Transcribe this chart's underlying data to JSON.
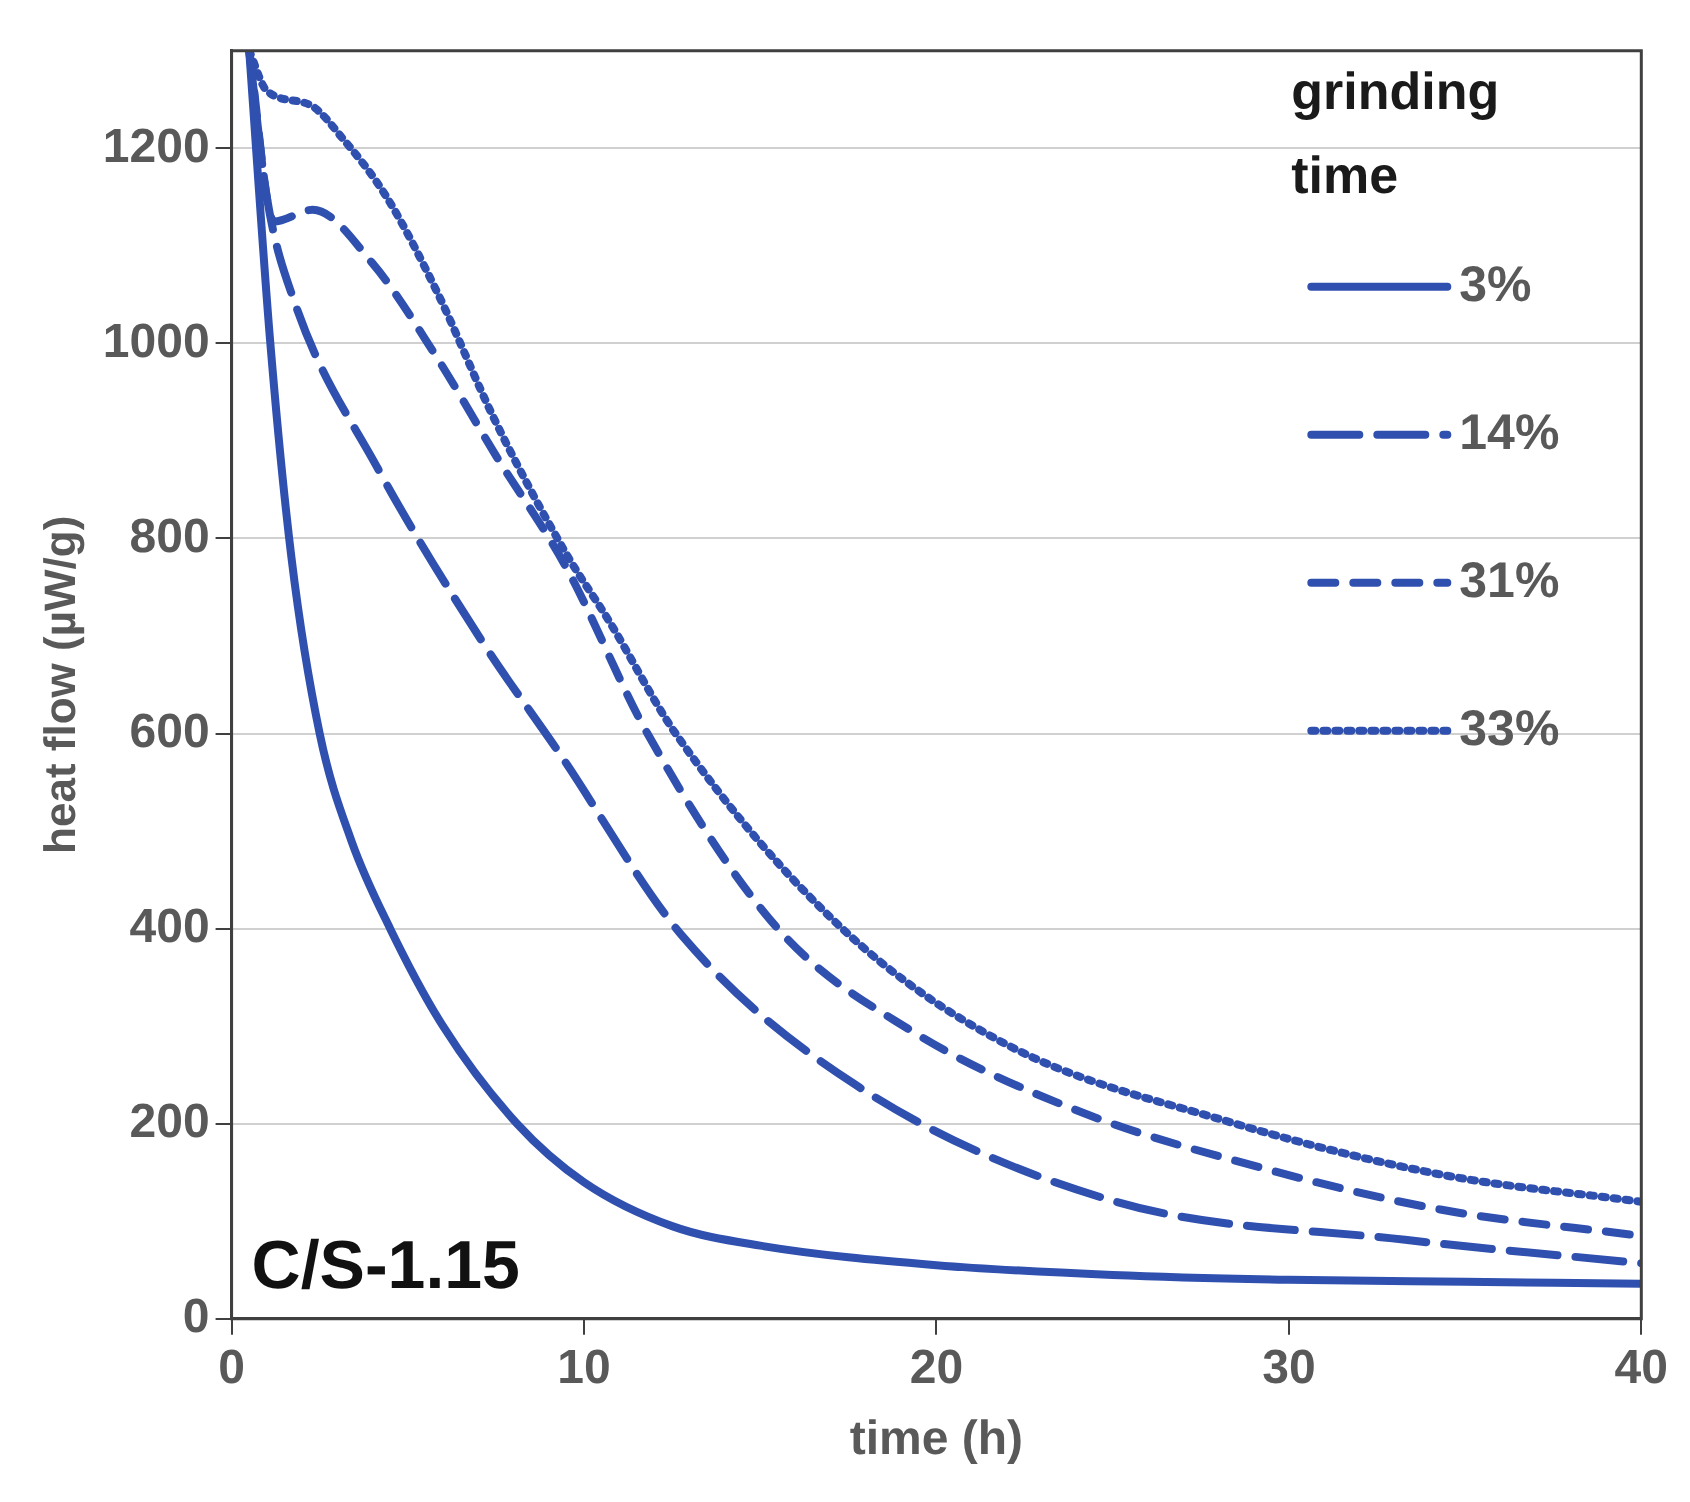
{
  "chart_data": {
    "type": "line",
    "xlabel": "time (h)",
    "ylabel": "heat flow (µW/g)",
    "legend_title": "grinding time",
    "xlim": [
      0,
      40
    ],
    "xticks": [
      0,
      10,
      20,
      30,
      40
    ],
    "ylim": [
      0,
      1300
    ],
    "yticks": [
      0,
      200,
      400,
      600,
      800,
      1000,
      1200
    ],
    "grid": "y",
    "legend": "top right",
    "marker": "none",
    "annotations": [
      "C/S-1.15"
    ],
    "series": [
      {
        "name": "3%",
        "color": "#3050b0",
        "line_style": "solid",
        "x": [
          0.5,
          1.1,
          1.7,
          2.5,
          3.4,
          4.5,
          6,
          8.1,
          10,
          12.5,
          15,
          20,
          25,
          30,
          35,
          40
        ],
        "values": [
          1300,
          1000,
          780,
          600,
          490,
          400,
          300,
          200,
          140,
          95,
          75,
          55,
          45,
          40,
          38,
          36
        ]
      },
      {
        "name": "14%",
        "color": "#3050b0",
        "line_style": "dashed",
        "x": [
          0.5,
          1,
          1.8,
          4.1,
          7.1,
          9.3,
          12.8,
          17.7,
          25.1,
          33.3,
          40
        ],
        "values": [
          1300,
          1150,
          1041,
          875,
          695,
          580,
          392,
          240,
          120,
          81,
          57
        ]
      },
      {
        "name": "31%",
        "color": "#3050b0",
        "line_style": "dashed",
        "x": [
          0.5,
          1.2,
          2.3,
          4,
          5.8,
          7.5,
          9.5,
          11.8,
          15.5,
          19.3,
          24.1,
          29.2,
          34.3,
          40
        ],
        "values": [
          1300,
          1125,
          1137,
          1082,
          987,
          885,
          770,
          600,
          400,
          295,
          212,
          155,
          112,
          85
        ]
      },
      {
        "name": "33%",
        "color": "#3050b0",
        "line_style": "dotted",
        "x": [
          0.5,
          1,
          2.2,
          3.2,
          4.4,
          5.8,
          7.5,
          9.5,
          10.7,
          12.6,
          17.3,
          22,
          28.2,
          34.3,
          40
        ],
        "values": [
          1300,
          1259,
          1245,
          1208,
          1150,
          1055,
          919,
          784,
          716,
          600,
          401,
          281,
          203,
          148,
          120
        ]
      }
    ]
  }
}
